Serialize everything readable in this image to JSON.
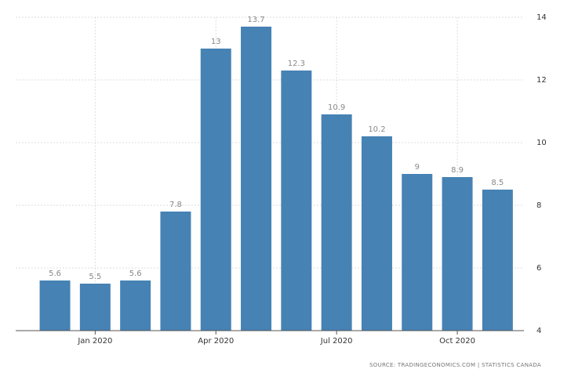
{
  "chart_data": {
    "type": "bar",
    "categories": [
      null,
      "Jan 2020",
      null,
      null,
      "Apr 2020",
      null,
      null,
      "Jul 2020",
      null,
      null,
      "Oct 2020",
      null
    ],
    "values": [
      5.6,
      5.5,
      5.6,
      7.8,
      13,
      13.7,
      12.3,
      10.9,
      10.2,
      9,
      8.9,
      8.5
    ],
    "color": "#4682b4",
    "ylim": [
      4,
      14
    ],
    "yticks": [
      4,
      6,
      8,
      10,
      12,
      14
    ],
    "y_axis_side": "right",
    "grid": true,
    "source": "SOURCE: TRADINGECONOMICS.COM | STATISTICS CANADA"
  }
}
